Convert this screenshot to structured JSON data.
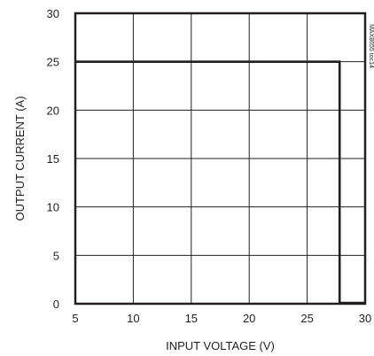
{
  "chart_data": {
    "type": "line",
    "xlabel": "INPUT VOLTAGE (V)",
    "ylabel": "OUTPUT CURRENT (A)",
    "xlim": [
      5,
      30
    ],
    "ylim": [
      0,
      30
    ],
    "x_ticks": [
      5,
      10,
      15,
      20,
      25,
      30
    ],
    "y_ticks": [
      0,
      5,
      10,
      15,
      20,
      25,
      30
    ],
    "grid": true,
    "figure_code": "MAX8655 toc14",
    "series": [
      {
        "x": [
          5,
          27.8,
          27.8,
          30
        ],
        "y": [
          25,
          25,
          0,
          0
        ]
      }
    ]
  }
}
